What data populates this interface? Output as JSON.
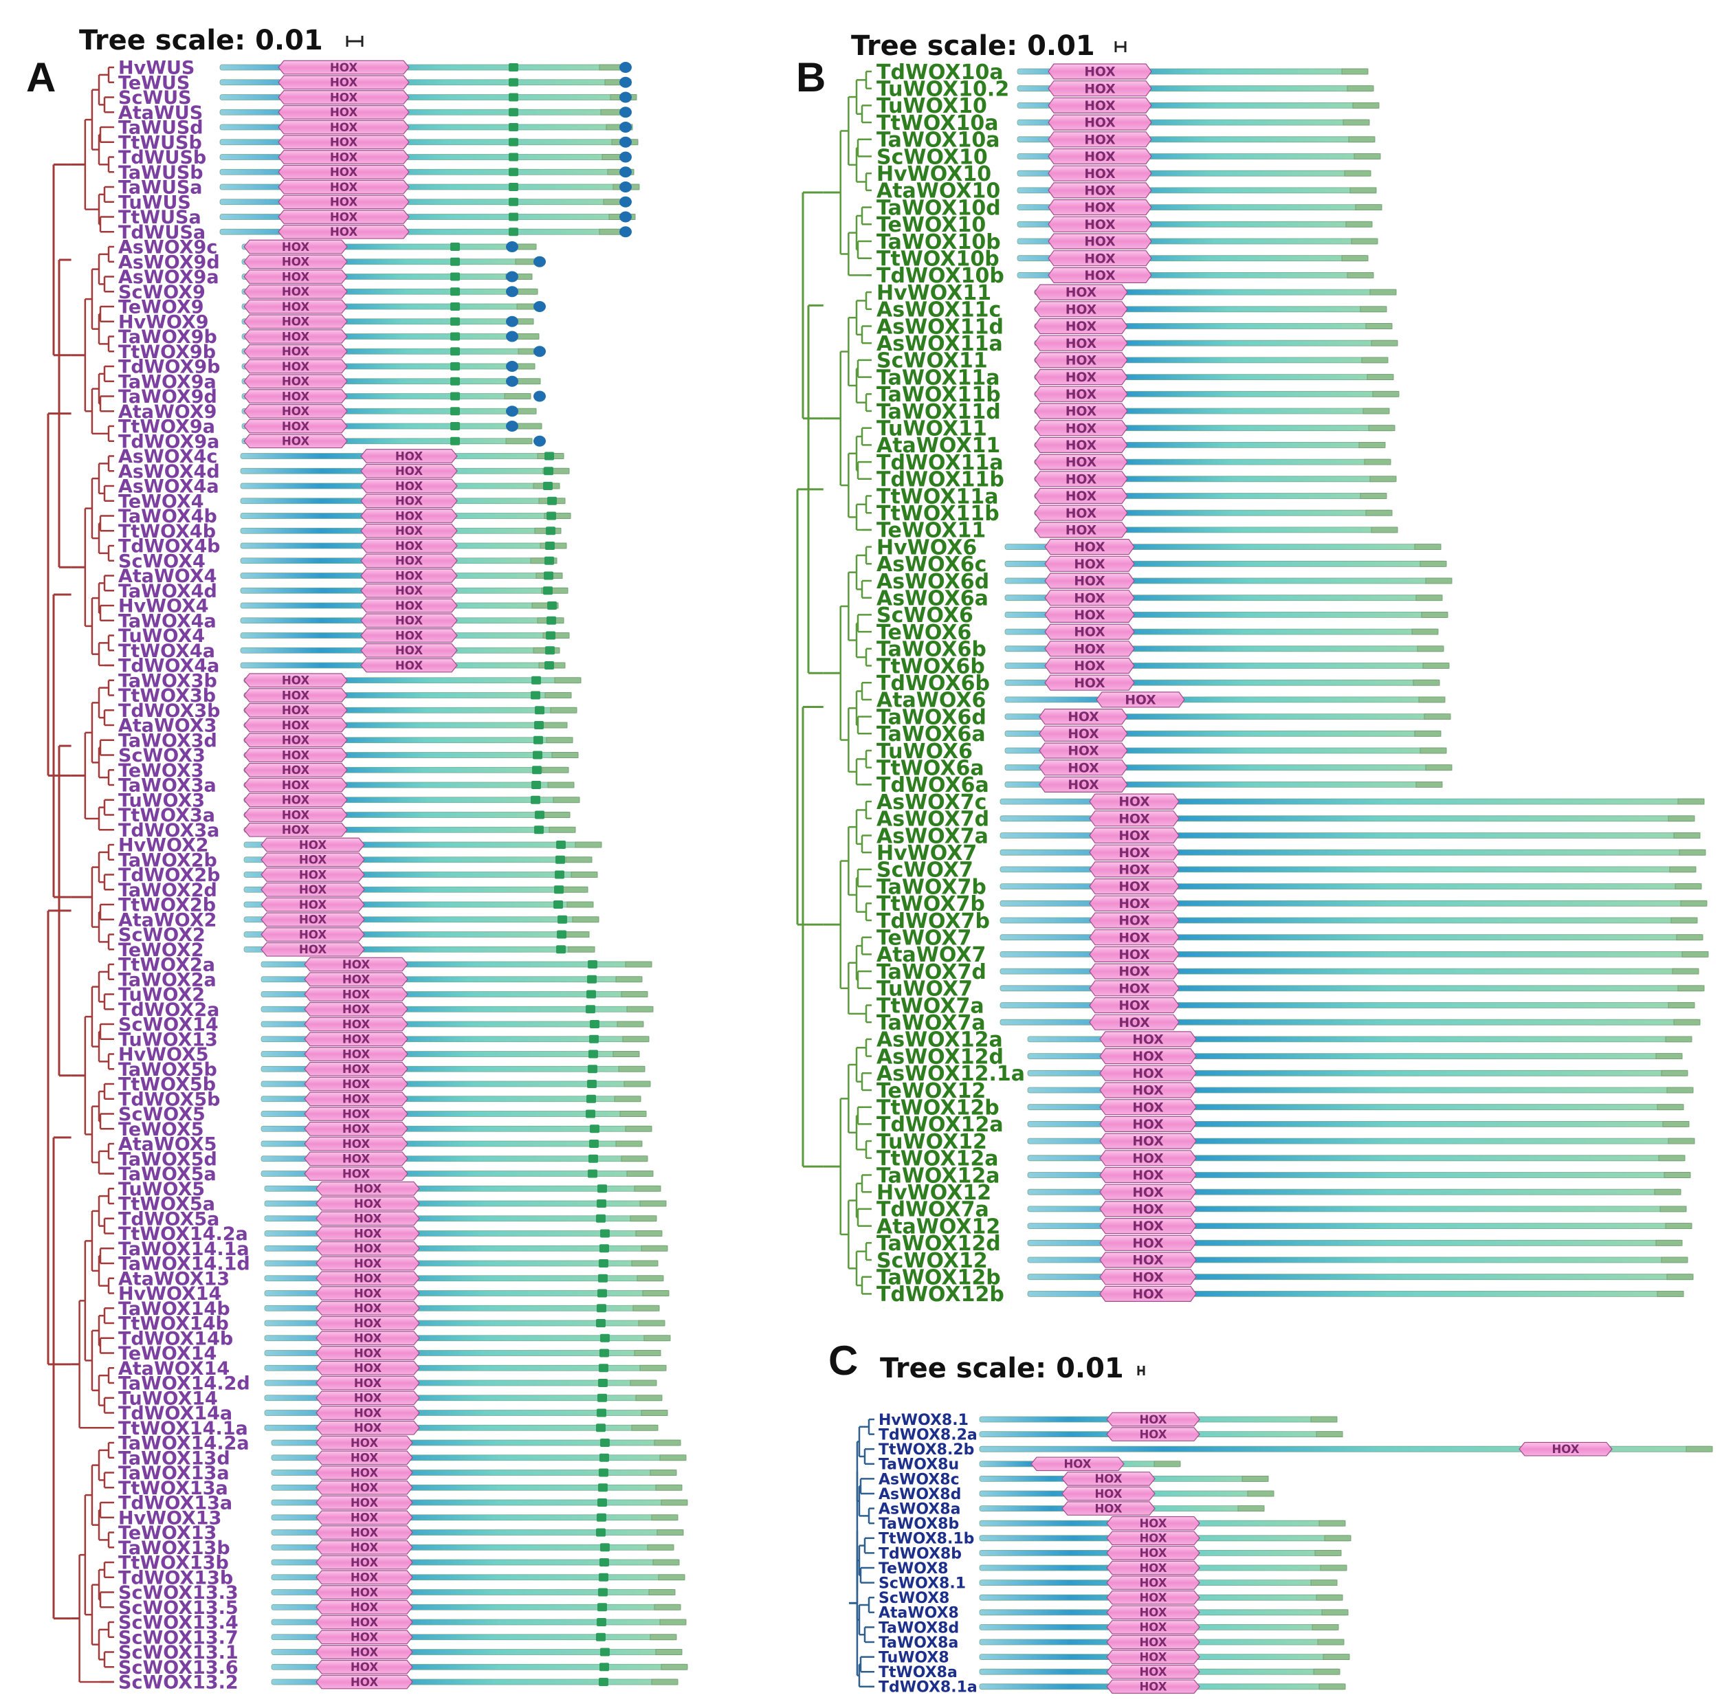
{
  "panels": [
    {
      "id": "A",
      "letter": "A",
      "scale_label": "Tree scale: 0.01",
      "label_color": "#7b3fa0",
      "tree_color": "#a33a3a",
      "genes": [
        "HvWUS",
        "TeWUS",
        "ScWUS",
        "AtaWUS",
        "TaWUSd",
        "TtWUSb",
        "TdWUSb",
        "TaWUSb",
        "TaWUSa",
        "TuWUS",
        "TtWUSa",
        "TdWUSa",
        "AsWOX9c",
        "AsWOX9d",
        "AsWOX9a",
        "ScWOX9",
        "TeWOX9",
        "HvWOX9",
        "TaWOX9b",
        "TtWOX9b",
        "TdWOX9b",
        "TaWOX9a",
        "TaWOX9d",
        "AtaWOX9",
        "TtWOX9a",
        "TdWOX9a",
        "AsWOX4c",
        "AsWOX4d",
        "AsWOX4a",
        "TeWOX4",
        "TaWOX4b",
        "TtWOX4b",
        "TdWOX4b",
        "ScWOX4",
        "AtaWOX4",
        "TaWOX4d",
        "HvWOX4",
        "TaWOX4a",
        "TuWOX4",
        "TtWOX4a",
        "TdWOX4a",
        "TaWOX3b",
        "TtWOX3b",
        "TdWOX3b",
        "AtaWOX3",
        "TaWOX3d",
        "ScWOX3",
        "TeWOX3",
        "TaWOX3a",
        "TuWOX3",
        "TtWOX3a",
        "TdWOX3a",
        "HvWOX2",
        "TaWOX2b",
        "TdWOX2b",
        "TaWOX2d",
        "TtWOX2b",
        "AtaWOX2",
        "ScWOX2",
        "TeWOX2",
        "TtWOX2a",
        "TaWOX2a",
        "TuWOX2",
        "TdWOX2a",
        "ScWOX14",
        "TuWOX13",
        "HvWOX5",
        "TaWOX5b",
        "TtWOX5b",
        "TdWOX5b",
        "ScWOX5",
        "TeWOX5",
        "AtaWOX5",
        "TaWOX5d",
        "TaWOX5a",
        "TuWOX5",
        "TtWOX5a",
        "TdWOX5a",
        "TtWOX14.2a",
        "TaWOX14.1a",
        "TaWOX14.1d",
        "AtaWOX13",
        "HvWOX14",
        "TaWOX14b",
        "TtWOX14b",
        "TdWOX14b",
        "TeWOX14",
        "AtaWOX14",
        "TaWOX14.2d",
        "TuWOX14",
        "TdWOX14a",
        "TtWOX14.1a",
        "TaWOX14.2a",
        "TaWOX13d",
        "TaWOX13a",
        "TtWOX13a",
        "TdWOX13a",
        "HvWOX13",
        "TeWOX13",
        "TaWOX13b",
        "TtWOX13b",
        "TdWOX13b",
        "ScWOX13.3",
        "ScWOX13.5",
        "ScWOX13.4",
        "ScWOX13.7",
        "ScWOX13.1",
        "ScWOX13.6",
        "ScWOX13.2"
      ]
    },
    {
      "id": "B",
      "letter": "B",
      "scale_label": "Tree scale: 0.01",
      "label_color": "#2e7d1f",
      "tree_color": "#5b9a3c",
      "genes": [
        "TdWOX10a",
        "TuWOX10.2",
        "TuWOX10",
        "TtWOX10a",
        "TaWOX10a",
        "ScWOX10",
        "HvWOX10",
        "AtaWOX10",
        "TaWOX10d",
        "TeWOX10",
        "TaWOX10b",
        "TtWOX10b",
        "TdWOX10b",
        "HvWOX11",
        "AsWOX11c",
        "AsWOX11d",
        "AsWOX11a",
        "ScWOX11",
        "TaWOX11a",
        "TaWOX11b",
        "TaWOX11d",
        "TuWOX11",
        "AtaWOX11",
        "TdWOX11a",
        "TdWOX11b",
        "TtWOX11a",
        "TtWOX11b",
        "TeWOX11",
        "HvWOX6",
        "AsWOX6c",
        "AsWOX6d",
        "AsWOX6a",
        "ScWOX6",
        "TeWOX6",
        "TaWOX6b",
        "TtWOX6b",
        "TdWOX6b",
        "AtaWOX6",
        "TaWOX6d",
        "TaWOX6a",
        "TuWOX6",
        "TtWOX6a",
        "TdWOX6a",
        "AsWOX7c",
        "AsWOX7d",
        "AsWOX7a",
        "HvWOX7",
        "ScWOX7",
        "TaWOX7b",
        "TtWOX7b",
        "TdWOX7b",
        "TeWOX7",
        "AtaWOX7",
        "TaWOX7d",
        "TuWOX7",
        "TtWOX7a",
        "TaWOX7a",
        "AsWOX12a",
        "AsWOX12d",
        "AsWOX12.1a",
        "TeWOX12",
        "TtWOX12b",
        "TdWOX12a",
        "TuWOX12",
        "TtWOX12a",
        "TaWOX12a",
        "HvWOX12",
        "TdWOX7a",
        "AtaWOX12",
        "TaWOX12d",
        "ScWOX12",
        "TaWOX12b",
        "TdWOX12b"
      ]
    },
    {
      "id": "C",
      "letter": "C",
      "scale_label": "Tree scale: 0.01",
      "label_color": "#1c2f8a",
      "tree_color": "#2f5f8f",
      "genes": [
        "HvWOX8.1",
        "TdWOX8.2a",
        "TtWOX8.2b",
        "TaWOX8u",
        "AsWOX8c",
        "AsWOX8d",
        "AsWOX8a",
        "TaWOX8b",
        "TtWOX8.1b",
        "TdWOX8b",
        "TeWOX8",
        "ScWOX8.1",
        "ScWOX8",
        "AtaWOX8",
        "TaWOX8d",
        "TaWOX8a",
        "TuWOX8",
        "TtWOX8a",
        "TdWOX8.1a"
      ]
    }
  ],
  "domain_label": "HOX",
  "colors": {
    "hox_fill": "#f49bd6",
    "hox_stroke": "#a04c8c",
    "bar_blue": "#3aa5cc",
    "bar_green": "#7ed0a8",
    "bar_end": "#8fbf8f",
    "motif_green": "#2a9d5a",
    "motif_blue": "#1f6fb0",
    "hox_text": "#7b2a6e"
  }
}
